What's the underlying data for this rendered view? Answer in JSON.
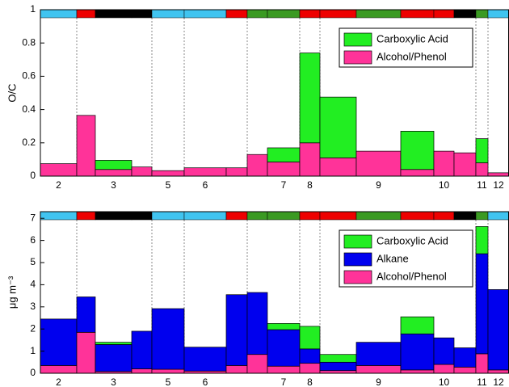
{
  "chart_data": [
    {
      "type": "bar",
      "stacked": true,
      "ylabel": "O/C",
      "categories": [
        "2",
        null,
        "3",
        null,
        "5",
        "6",
        null,
        null,
        "7",
        "8",
        null,
        "9",
        null,
        "10",
        null,
        "11",
        "12"
      ],
      "band_colors": [
        "#40c4f0",
        "#ee0000",
        "#000000",
        "#000000",
        "#40c4f0",
        "#40c4f0",
        "#ee0000",
        "#3a9a22",
        "#3a9a22",
        "#ee0000",
        "#ee0000",
        "#3a9a22",
        "#ee0000",
        "#ee0000",
        "#000000",
        "#3a9a22",
        "#40c4f0"
      ],
      "series": [
        {
          "name": "Carboxylic Acid",
          "color": "#22ee22",
          "values": [
            0,
            0,
            0.055,
            0,
            0,
            0,
            0,
            0,
            0.085,
            0.54,
            0.365,
            0,
            0.23,
            0,
            0,
            0.145,
            0
          ]
        },
        {
          "name": "Alcohol/Phenol",
          "color": "#ff3399",
          "values": [
            0.075,
            0.365,
            0.04,
            0.055,
            0.033,
            0.05,
            0.05,
            0.13,
            0.085,
            0.2,
            0.11,
            0.15,
            0.04,
            0.15,
            0.14,
            0.08,
            0.02
          ]
        }
      ],
      "ylim": [
        0,
        1
      ],
      "yticks": [
        0,
        0.2,
        0.4,
        0.6,
        0.8,
        1
      ],
      "legend": "upper right"
    },
    {
      "type": "bar",
      "stacked": true,
      "ylabel": "μg m⁻³",
      "categories": [
        "2",
        null,
        "3",
        null,
        "5",
        "6",
        null,
        null,
        "7",
        "8",
        null,
        "9",
        null,
        "10",
        null,
        "11",
        "12"
      ],
      "band_colors": [
        "#40c4f0",
        "#ee0000",
        "#000000",
        "#000000",
        "#40c4f0",
        "#40c4f0",
        "#ee0000",
        "#3a9a22",
        "#3a9a22",
        "#ee0000",
        "#ee0000",
        "#3a9a22",
        "#ee0000",
        "#ee0000",
        "#000000",
        "#3a9a22",
        "#40c4f0"
      ],
      "series": [
        {
          "name": "Carboxylic Acid",
          "color": "#22ee22",
          "values": [
            0,
            0,
            0.1,
            0,
            0,
            0,
            0,
            0,
            0.28,
            1.02,
            0.35,
            0,
            0.77,
            0,
            0,
            1.23,
            0
          ]
        },
        {
          "name": "Alkane",
          "color": "#0000ee",
          "values": [
            2.1,
            1.6,
            1.22,
            1.7,
            2.74,
            1.08,
            3.2,
            2.8,
            1.65,
            0.65,
            0.38,
            1.05,
            1.63,
            1.2,
            0.87,
            4.52,
            3.63
          ]
        },
        {
          "name": "Alcohol/Phenol",
          "color": "#ff3399",
          "values": [
            0.35,
            1.85,
            0.08,
            0.2,
            0.18,
            0.1,
            0.35,
            0.85,
            0.32,
            0.45,
            0.12,
            0.35,
            0.15,
            0.4,
            0.28,
            0.88,
            0.15
          ]
        }
      ],
      "ylim": [
        0,
        7.3
      ],
      "yticks": [
        0,
        1,
        2,
        3,
        4,
        5,
        6,
        7
      ],
      "legend": "upper right"
    }
  ]
}
